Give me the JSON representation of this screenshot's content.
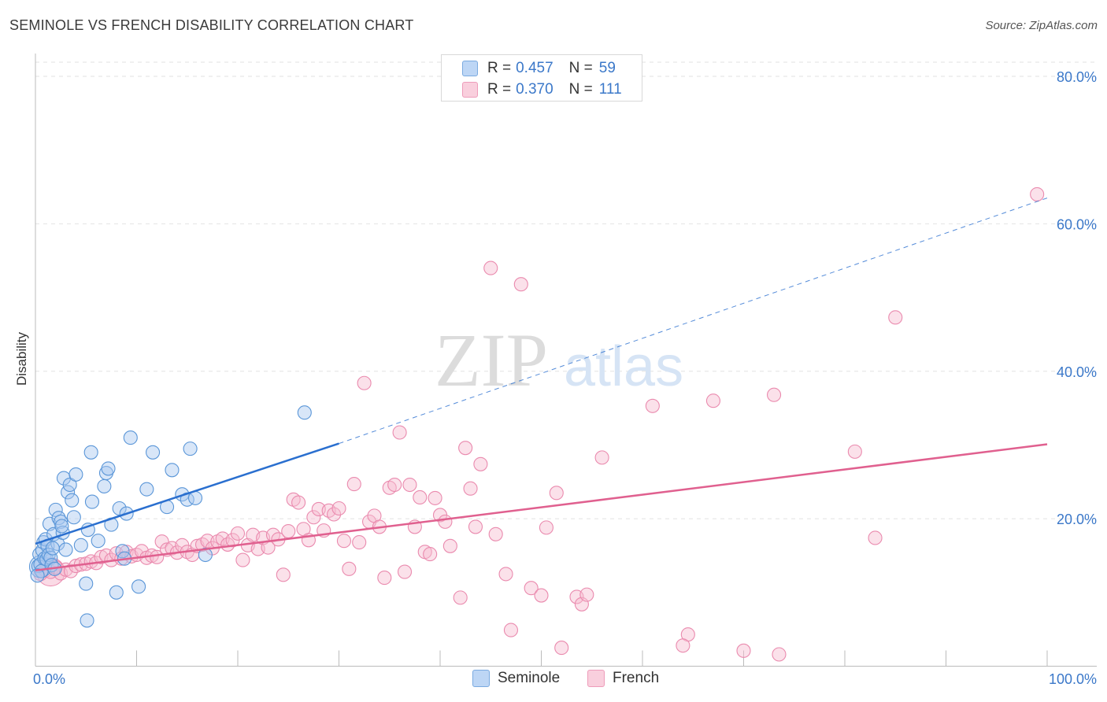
{
  "title": "SEMINOLE VS FRENCH DISABILITY CORRELATION CHART",
  "source": "Source: ZipAtlas.com",
  "watermark": {
    "zip": "ZIP",
    "atlas": "atlas"
  },
  "legend_top": [
    {
      "r_label": "R =",
      "r_value": "0.457",
      "n_label": "N =",
      "n_value": "59"
    },
    {
      "r_label": "R =",
      "r_value": "0.370",
      "n_label": "N =",
      "n_value": "111"
    }
  ],
  "colors": {
    "seminole_fill": "#a8c8f0",
    "seminole_stroke": "#5a96d8",
    "seminole_line": "#2a6fcf",
    "french_fill": "#f6bcd0",
    "french_stroke": "#ea8aae",
    "french_line": "#e0608f",
    "axis_label": "#3b78c9",
    "grid": "#e2e2e2"
  },
  "chart_data": {
    "type": "scatter",
    "title": "SEMINOLE VS FRENCH DISABILITY CORRELATION CHART",
    "xlabel": "",
    "ylabel": "Disability",
    "xlim": [
      0,
      100
    ],
    "ylim": [
      0,
      80
    ],
    "x_tick_labels": [
      "0.0%",
      "100.0%"
    ],
    "y_ticks": [
      20,
      40,
      60,
      80
    ],
    "y_tick_labels": [
      "20.0%",
      "40.0%",
      "60.0%",
      "80.0%"
    ],
    "grid": true,
    "legend_position": "bottom",
    "series": [
      {
        "name": "Seminole",
        "R": 0.457,
        "N": 59,
        "trend": {
          "x": [
            0,
            30
          ],
          "y": [
            16.6,
            30.2
          ],
          "dashed_extension_to_x": 100,
          "dashed_end_y": 63.5
        },
        "points": [
          [
            0.3,
            13.6
          ],
          [
            0.4,
            15.2
          ],
          [
            0.5,
            13.8
          ],
          [
            0.6,
            12.9
          ],
          [
            0.7,
            15.7
          ],
          [
            0.8,
            16.8
          ],
          [
            0.9,
            14.6
          ],
          [
            1.0,
            17.2
          ],
          [
            1.1,
            14.5
          ],
          [
            1.2,
            16.3
          ],
          [
            1.3,
            15.1
          ],
          [
            1.4,
            19.3
          ],
          [
            1.5,
            14.7
          ],
          [
            1.6,
            13.7
          ],
          [
            1.8,
            17.9
          ],
          [
            2.0,
            21.2
          ],
          [
            2.2,
            16.6
          ],
          [
            2.3,
            20.1
          ],
          [
            2.5,
            19.6
          ],
          [
            2.7,
            18.1
          ],
          [
            2.8,
            25.5
          ],
          [
            3.0,
            15.8
          ],
          [
            3.2,
            23.6
          ],
          [
            3.4,
            24.6
          ],
          [
            3.6,
            22.5
          ],
          [
            3.8,
            20.2
          ],
          [
            4.0,
            26.0
          ],
          [
            4.5,
            16.4
          ],
          [
            5.0,
            11.2
          ],
          [
            5.2,
            18.5
          ],
          [
            5.5,
            29.0
          ],
          [
            5.6,
            22.3
          ],
          [
            6.2,
            17.0
          ],
          [
            6.8,
            24.4
          ],
          [
            7.0,
            26.2
          ],
          [
            7.2,
            26.8
          ],
          [
            7.5,
            19.2
          ],
          [
            8.0,
            10.0
          ],
          [
            8.3,
            21.4
          ],
          [
            8.6,
            15.6
          ],
          [
            8.8,
            14.6
          ],
          [
            9.0,
            20.7
          ],
          [
            9.4,
            31.0
          ],
          [
            10.2,
            10.8
          ],
          [
            11.0,
            24.0
          ],
          [
            11.6,
            29.0
          ],
          [
            13.0,
            21.6
          ],
          [
            13.5,
            26.6
          ],
          [
            14.5,
            23.3
          ],
          [
            15.0,
            22.6
          ],
          [
            15.3,
            29.5
          ],
          [
            15.8,
            22.8
          ],
          [
            16.8,
            15.1
          ],
          [
            5.1,
            6.2
          ],
          [
            1.7,
            16.0
          ],
          [
            2.6,
            19.0
          ],
          [
            0.2,
            12.3
          ],
          [
            1.9,
            13.2
          ],
          [
            26.6,
            34.4
          ]
        ]
      },
      {
        "name": "French",
        "R": 0.37,
        "N": 111,
        "trend": {
          "x": [
            0,
            100
          ],
          "y": [
            13.0,
            30.1
          ]
        },
        "points": [
          [
            0.5,
            12.5
          ],
          [
            1.0,
            13.0
          ],
          [
            1.5,
            12.8
          ],
          [
            2.0,
            13.4
          ],
          [
            2.5,
            12.6
          ],
          [
            3.0,
            13.1
          ],
          [
            3.5,
            12.9
          ],
          [
            4.0,
            13.6
          ],
          [
            4.5,
            13.8
          ],
          [
            5.0,
            13.9
          ],
          [
            5.5,
            14.2
          ],
          [
            6.0,
            14.0
          ],
          [
            6.5,
            14.8
          ],
          [
            7.0,
            15.0
          ],
          [
            7.5,
            14.4
          ],
          [
            8.0,
            15.3
          ],
          [
            8.5,
            14.6
          ],
          [
            9.0,
            15.5
          ],
          [
            9.5,
            14.9
          ],
          [
            10.0,
            15.1
          ],
          [
            10.5,
            15.6
          ],
          [
            11.0,
            14.7
          ],
          [
            11.5,
            15.0
          ],
          [
            12.0,
            14.8
          ],
          [
            12.5,
            16.9
          ],
          [
            13.0,
            15.8
          ],
          [
            13.5,
            16.0
          ],
          [
            14.0,
            15.4
          ],
          [
            14.5,
            16.4
          ],
          [
            15.0,
            15.5
          ],
          [
            15.5,
            15.1
          ],
          [
            16.0,
            16.3
          ],
          [
            16.5,
            16.5
          ],
          [
            17.0,
            17.0
          ],
          [
            17.5,
            16.0
          ],
          [
            18.0,
            16.9
          ],
          [
            18.5,
            17.3
          ],
          [
            19.0,
            16.5
          ],
          [
            19.5,
            17.1
          ],
          [
            20.0,
            18.0
          ],
          [
            20.5,
            14.4
          ],
          [
            21.0,
            16.4
          ],
          [
            21.5,
            17.8
          ],
          [
            22.0,
            15.9
          ],
          [
            22.5,
            17.4
          ],
          [
            23.0,
            16.1
          ],
          [
            23.5,
            17.8
          ],
          [
            24.0,
            17.2
          ],
          [
            24.5,
            12.4
          ],
          [
            25.0,
            18.3
          ],
          [
            25.5,
            22.6
          ],
          [
            26.0,
            22.2
          ],
          [
            26.5,
            18.6
          ],
          [
            27.0,
            17.1
          ],
          [
            27.5,
            20.2
          ],
          [
            28.0,
            21.3
          ],
          [
            28.5,
            18.4
          ],
          [
            29.0,
            21.1
          ],
          [
            29.5,
            20.6
          ],
          [
            30.0,
            21.4
          ],
          [
            30.5,
            17.0
          ],
          [
            31.0,
            13.2
          ],
          [
            31.5,
            24.7
          ],
          [
            32.0,
            16.8
          ],
          [
            32.5,
            38.4
          ],
          [
            33.0,
            19.6
          ],
          [
            33.5,
            20.4
          ],
          [
            34.0,
            18.9
          ],
          [
            34.5,
            12.0
          ],
          [
            35.0,
            24.2
          ],
          [
            35.5,
            24.6
          ],
          [
            36.0,
            31.7
          ],
          [
            36.5,
            12.8
          ],
          [
            37.0,
            24.6
          ],
          [
            37.5,
            18.9
          ],
          [
            38.0,
            22.9
          ],
          [
            38.5,
            15.5
          ],
          [
            39.0,
            15.2
          ],
          [
            39.5,
            22.8
          ],
          [
            40.0,
            20.5
          ],
          [
            40.5,
            19.6
          ],
          [
            41.0,
            16.3
          ],
          [
            42.0,
            9.3
          ],
          [
            42.5,
            29.6
          ],
          [
            43.0,
            24.1
          ],
          [
            43.5,
            18.9
          ],
          [
            44.0,
            27.4
          ],
          [
            45.0,
            54.0
          ],
          [
            45.5,
            17.9
          ],
          [
            46.5,
            12.5
          ],
          [
            47.0,
            4.9
          ],
          [
            48.0,
            51.8
          ],
          [
            49.0,
            10.6
          ],
          [
            50.0,
            9.6
          ],
          [
            50.5,
            18.8
          ],
          [
            51.5,
            23.5
          ],
          [
            52.0,
            2.5
          ],
          [
            53.5,
            9.4
          ],
          [
            54.0,
            8.4
          ],
          [
            54.5,
            9.7
          ],
          [
            56.0,
            28.3
          ],
          [
            61.0,
            35.3
          ],
          [
            64.5,
            4.3
          ],
          [
            64.0,
            2.8
          ],
          [
            67.0,
            36.0
          ],
          [
            70.0,
            2.1
          ],
          [
            73.0,
            36.8
          ],
          [
            73.5,
            1.6
          ],
          [
            81.0,
            29.1
          ],
          [
            83.0,
            17.4
          ],
          [
            85.0,
            47.3
          ],
          [
            99.0,
            64.0
          ]
        ]
      }
    ]
  }
}
